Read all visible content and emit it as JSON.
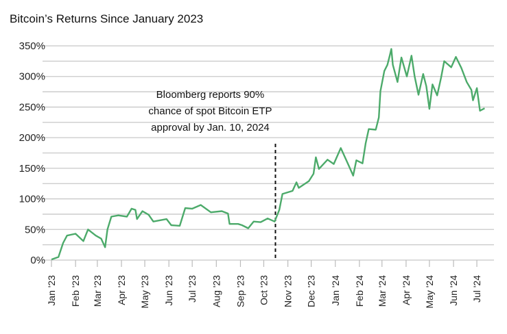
{
  "chart_data": {
    "type": "line",
    "title": "Bitcoin’s Returns Since January 2023",
    "xlabel": "",
    "ylabel": "",
    "xlim": [
      "2023-01-01",
      "2024-07-23"
    ],
    "ylim": [
      0,
      350
    ],
    "y_ticks": [
      0,
      50,
      100,
      150,
      200,
      250,
      300,
      350
    ],
    "y_tick_labels": [
      "0%",
      "50%",
      "100%",
      "150%",
      "200%",
      "250%",
      "300%",
      "350%"
    ],
    "minor_gridlines_every": 25,
    "grid": true,
    "x_ticks": [
      "2023-01-01",
      "2023-02-01",
      "2023-03-01",
      "2023-04-01",
      "2023-05-01",
      "2023-06-01",
      "2023-07-01",
      "2023-08-01",
      "2023-09-01",
      "2023-10-01",
      "2023-11-01",
      "2023-12-01",
      "2024-01-01",
      "2024-02-01",
      "2024-03-01",
      "2024-04-01",
      "2024-05-01",
      "2024-06-01",
      "2024-07-01"
    ],
    "x_tick_labels": [
      "Jan '23",
      "Feb '23",
      "Mar '23",
      "Apr '23",
      "May '23",
      "Jun '23",
      "Jul '23",
      "Aug '23",
      "Sep '23",
      "Oct '23",
      "Nov '23",
      "Dec '23",
      "Jan '24",
      "Feb '24",
      "Mar '24",
      "Apr '24",
      "May '24",
      "Jun '24",
      "Jul '24"
    ],
    "line_color": "#4caa6a",
    "series": [
      {
        "x": [
          "2023-01-01",
          "2023-01-10",
          "2023-01-16",
          "2023-01-21",
          "2023-02-01",
          "2023-02-11",
          "2023-02-17",
          "2023-02-27",
          "2023-03-06",
          "2023-03-11",
          "2023-03-14",
          "2023-03-19",
          "2023-03-28",
          "2023-04-08",
          "2023-04-14",
          "2023-04-19",
          "2023-04-21",
          "2023-04-28",
          "2023-05-06",
          "2023-05-12",
          "2023-05-29",
          "2023-06-04",
          "2023-06-15",
          "2023-06-22",
          "2023-07-01",
          "2023-07-12",
          "2023-07-25",
          "2023-08-08",
          "2023-08-16",
          "2023-08-18",
          "2023-08-29",
          "2023-09-03",
          "2023-09-11",
          "2023-09-18",
          "2023-09-27",
          "2023-10-06",
          "2023-10-15",
          "2023-10-21",
          "2023-10-25",
          "2023-11-07",
          "2023-11-12",
          "2023-11-15",
          "2023-11-28",
          "2023-12-04",
          "2023-12-07",
          "2023-12-11",
          "2023-12-22",
          "2023-12-30",
          "2024-01-08",
          "2024-01-17",
          "2024-01-24",
          "2024-01-28",
          "2024-02-05",
          "2024-02-09",
          "2024-02-13",
          "2024-02-22",
          "2024-02-26",
          "2024-02-28",
          "2024-03-04",
          "2024-03-08",
          "2024-03-11",
          "2024-03-13",
          "2024-03-15",
          "2024-03-21",
          "2024-03-26",
          "2024-04-02",
          "2024-04-08",
          "2024-04-12",
          "2024-04-17",
          "2024-04-23",
          "2024-04-27",
          "2024-05-01",
          "2024-05-05",
          "2024-05-11",
          "2024-05-16",
          "2024-05-20",
          "2024-05-29",
          "2024-06-04",
          "2024-06-11",
          "2024-06-18",
          "2024-06-24",
          "2024-06-26",
          "2024-07-01",
          "2024-07-05",
          "2024-07-11"
        ],
        "y": [
          1,
          5,
          28,
          40,
          43,
          31,
          50,
          40,
          35,
          21,
          50,
          71,
          73,
          71,
          84,
          82,
          67,
          80,
          74,
          63,
          67,
          57,
          56,
          85,
          84,
          90,
          78,
          80,
          76,
          59,
          59,
          57,
          52,
          63,
          62,
          68,
          63,
          82,
          108,
          113,
          127,
          118,
          129,
          141,
          168,
          149,
          164,
          157,
          183,
          158,
          138,
          163,
          158,
          191,
          214,
          213,
          233,
          276,
          309,
          319,
          334,
          345,
          319,
          291,
          331,
          300,
          334,
          300,
          270,
          304,
          284,
          247,
          287,
          269,
          298,
          325,
          315,
          332,
          314,
          291,
          278,
          261,
          281,
          244,
          248
        ]
      }
    ],
    "annotations": [
      {
        "x": "2023-10-16",
        "style": "dashed-vertical-line",
        "lines": [
          "Bloomberg reports 90%",
          "chance of spot Bitcoin ETP",
          "approval by Jan. 10, 2024"
        ]
      }
    ]
  }
}
